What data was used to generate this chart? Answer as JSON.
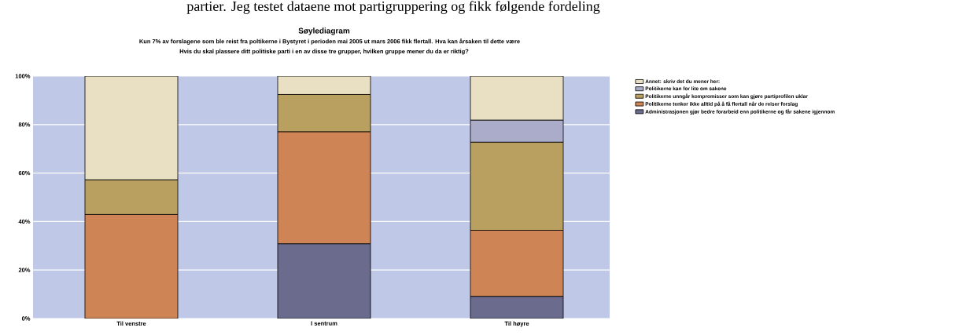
{
  "chart_data": {
    "type": "bar",
    "title": "Søylediagram",
    "subtitle": "Kun 7% av forslagene som ble reist fra poltikerne i Bystyret i perioden mai 2005 ut mars 2006 fikk flertall. Hva kan årsaken til dette være",
    "annotations": [
      "partier. Jeg testet dataene mot partigruppering og fikk følgende fordeling",
      "Hvis du skal plassere ditt politiske parti i en av disse tre grupper, hvilken gruppe mener du da er riktig?"
    ],
    "categories": [
      "Til venstre",
      "I sentrum",
      "Til høyre"
    ],
    "stacked": true,
    "series": [
      {
        "name": "Administrasjonen gjør bedre forarbeid enn politikerne og får sakene igjennom",
        "color": "#6b6b8e",
        "values": [
          0,
          30.8,
          9.1
        ]
      },
      {
        "name": "Politikerne tenker ikke alltid på å få flertall når de reiser forslag",
        "color": "#cf8456",
        "values": [
          42.9,
          46.2,
          27.3
        ]
      },
      {
        "name": "Politikerne unngår kompromisser som kan gjøre partiprofilen uklar",
        "color": "#b9a060",
        "values": [
          14.3,
          15.4,
          36.3
        ]
      },
      {
        "name": "Politikerne kan for lite om sakene",
        "color": "#abacca",
        "values": [
          0,
          0,
          9.1
        ]
      },
      {
        "name": "Annet: skriv det du mener her:",
        "color": "#e9e0c3",
        "values": [
          42.8,
          7.6,
          18.2
        ]
      }
    ],
    "ylim": [
      0,
      100
    ],
    "yticks": [
      {
        "value": 0,
        "label": "0%"
      },
      {
        "value": 20,
        "label": "20%"
      },
      {
        "value": 40,
        "label": "40%"
      },
      {
        "value": 60,
        "label": "60%"
      },
      {
        "value": 80,
        "label": "80%"
      },
      {
        "value": 100,
        "label": "100%"
      }
    ],
    "grid": "y",
    "legend": "right"
  }
}
